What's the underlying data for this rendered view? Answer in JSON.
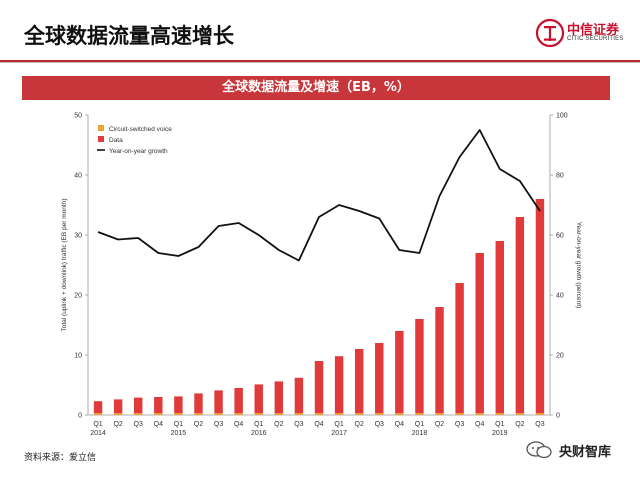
{
  "slide": {
    "title": "全球数据流量高速增长",
    "logo_cn": "中信证券",
    "logo_en": "CITIC SECURITIES",
    "source": "资料来源：爱立信",
    "watermark": "央财智库",
    "accent_color": "#c8353a"
  },
  "chart_data": {
    "type": "bar",
    "title": "全球数据流量及增速（EB，%）",
    "categories": [
      "Q1",
      "Q2",
      "Q3",
      "Q4",
      "Q1",
      "Q2",
      "Q3",
      "Q4",
      "Q1",
      "Q2",
      "Q3",
      "Q4",
      "Q1",
      "Q2",
      "Q3",
      "Q4",
      "Q1",
      "Q2",
      "Q3",
      "Q4",
      "Q1",
      "Q2",
      "Q3"
    ],
    "year_labels": [
      {
        "index": 0,
        "label": "2014"
      },
      {
        "index": 4,
        "label": "2015"
      },
      {
        "index": 8,
        "label": "2016"
      },
      {
        "index": 12,
        "label": "2017"
      },
      {
        "index": 16,
        "label": "2018"
      },
      {
        "index": 20,
        "label": "2019"
      }
    ],
    "series": [
      {
        "name": "Circuit-switched voice",
        "type": "bar",
        "axis": "left",
        "color": "#f0a030",
        "values": [
          0.3,
          0.3,
          0.3,
          0.3,
          0.3,
          0.3,
          0.3,
          0.3,
          0.3,
          0.3,
          0.3,
          0.3,
          0.3,
          0.3,
          0.3,
          0.3,
          0.3,
          0.3,
          0.3,
          0.3,
          0.3,
          0.3,
          0.3
        ]
      },
      {
        "name": "Data",
        "type": "bar",
        "axis": "left",
        "color": "#e03a3a",
        "values": [
          2.3,
          2.6,
          2.9,
          3.0,
          3.1,
          3.6,
          4.1,
          4.5,
          5.1,
          5.6,
          6.2,
          9.0,
          9.8,
          11.0,
          12.0,
          14.0,
          16.0,
          18.0,
          22.0,
          27.0,
          29.0,
          33.0,
          36.0
        ]
      },
      {
        "name": "Year-on-year growth",
        "type": "line",
        "axis": "right",
        "color": "#111111",
        "values": [
          61,
          58.5,
          59,
          54,
          53,
          56,
          63,
          64,
          60,
          55,
          51.5,
          66,
          70,
          68,
          65.5,
          55,
          54,
          73,
          86,
          95,
          82,
          78,
          68
        ]
      }
    ],
    "y_left": {
      "label": "Total (uplink + downlink) traffic (EB per month)",
      "ylim": [
        0,
        50
      ],
      "ticks": [
        0,
        10,
        20,
        30,
        40,
        50
      ]
    },
    "y_right": {
      "label": "Year-on-year growth (percent)",
      "ylim": [
        0,
        100
      ],
      "ticks": [
        0,
        20,
        40,
        60,
        80,
        100
      ]
    },
    "grid": false,
    "legend_position": "top-left"
  }
}
